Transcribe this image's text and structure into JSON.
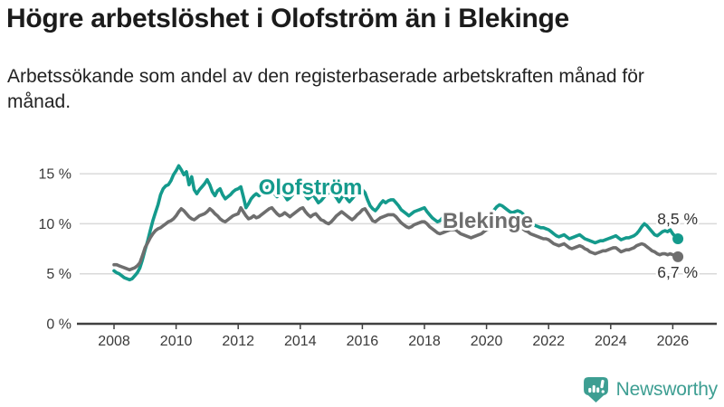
{
  "header": {
    "title": "Högre arbetslöshet i Olofström än i Blekinge",
    "subtitle": "Arbetssökande som andel av den registerbaserade arbetskraften månad för månad."
  },
  "footer": {
    "brand": "Newsworthy",
    "logo_icon": "speech-bubble-bar-chart-exclamation",
    "brand_color": "#3d9e92"
  },
  "colors": {
    "olofstrom_teal": "#149a8c",
    "blekinge_gray": "#6e6e6e",
    "axis_text": "#3a3a3a",
    "gridline": "#d9d9d9",
    "axis_line": "#404040",
    "value_label": "#333333"
  },
  "chart_data": {
    "type": "line",
    "unit": "%",
    "title": "Högre arbetslöshet i Olofström än i Blekinge",
    "x_axis": {
      "tick_years": [
        2008,
        2010,
        2012,
        2014,
        2016,
        2018,
        2020,
        2022,
        2024,
        2026
      ],
      "start": 2008.0,
      "end": 2026.17
    },
    "y_axis": {
      "ticks": [
        {
          "value": 0,
          "label": "0 %"
        },
        {
          "value": 5,
          "label": "5 %"
        },
        {
          "value": 10,
          "label": "10 %"
        },
        {
          "value": 15,
          "label": "15 %"
        }
      ],
      "max": 16,
      "gridlines": true
    },
    "legend": "inline-labels-on-lines",
    "series": [
      {
        "name": "Olofström",
        "color": "#149a8c",
        "start_year": 2008,
        "interval": "monthly",
        "end_label": "8,5 %",
        "end_value": 8.5,
        "values": [
          5.3,
          5.1,
          5.0,
          4.8,
          4.6,
          4.5,
          4.4,
          4.5,
          4.8,
          5.1,
          5.6,
          6.4,
          7.4,
          8.3,
          9.3,
          10.3,
          11.1,
          11.9,
          12.9,
          13.5,
          13.8,
          13.9,
          14.3,
          14.9,
          15.3,
          15.8,
          15.4,
          14.9,
          15.2,
          13.9,
          14.7,
          13.4,
          13.0,
          13.4,
          13.7,
          14.0,
          14.4,
          13.9,
          13.2,
          12.8,
          13.3,
          13.5,
          12.9,
          12.5,
          12.7,
          12.9,
          13.2,
          13.4,
          13.5,
          13.7,
          12.7,
          11.6,
          12.0,
          12.5,
          12.8,
          13.0,
          12.8,
          13.0,
          13.3,
          13.6,
          13.8,
          13.5,
          13.0,
          12.7,
          12.9,
          13.1,
          12.8,
          12.4,
          12.6,
          12.9,
          13.1,
          13.3,
          13.6,
          13.2,
          12.8,
          12.5,
          12.7,
          12.9,
          12.5,
          12.1,
          12.3,
          12.6,
          12.9,
          13.1,
          13.3,
          12.9,
          12.6,
          12.2,
          12.6,
          12.9,
          12.5,
          12.2,
          12.5,
          12.8,
          13.1,
          13.3,
          13.4,
          13.1,
          12.4,
          11.8,
          11.5,
          11.3,
          11.6,
          12.0,
          12.3,
          12.1,
          12.3,
          12.4,
          12.4,
          12.1,
          11.8,
          11.4,
          11.2,
          11.0,
          10.8,
          11.0,
          11.2,
          11.3,
          11.4,
          11.5,
          11.6,
          11.2,
          10.9,
          10.6,
          10.4,
          10.2,
          10.3,
          10.6,
          10.8,
          10.6,
          10.5,
          10.6,
          10.7,
          10.4,
          10.2,
          10.0,
          10.1,
          10.2,
          10.0,
          9.9,
          10.1,
          10.3,
          10.4,
          10.6,
          10.7,
          10.8,
          11.0,
          11.4,
          11.7,
          11.9,
          11.8,
          11.6,
          11.4,
          11.2,
          11.1,
          11.2,
          11.3,
          11.2,
          11.0,
          10.7,
          10.4,
          10.1,
          9.9,
          9.8,
          9.7,
          9.6,
          9.6,
          9.5,
          9.4,
          9.2,
          9.0,
          8.8,
          8.7,
          8.8,
          8.9,
          8.7,
          8.5,
          8.6,
          8.7,
          8.8,
          8.9,
          8.7,
          8.5,
          8.4,
          8.3,
          8.2,
          8.1,
          8.2,
          8.3,
          8.3,
          8.4,
          8.5,
          8.6,
          8.7,
          8.8,
          8.6,
          8.4,
          8.5,
          8.6,
          8.6,
          8.7,
          8.8,
          9.0,
          9.3,
          9.7,
          10.0,
          9.8,
          9.5,
          9.2,
          8.9,
          8.8,
          9.0,
          9.2,
          9.3,
          9.2,
          9.4,
          9.0,
          8.7,
          8.5
        ]
      },
      {
        "name": "Blekinge",
        "color": "#6e6e6e",
        "start_year": 2008,
        "interval": "monthly",
        "end_label": "6,7 %",
        "end_value": 6.7,
        "values": [
          5.9,
          5.9,
          5.8,
          5.7,
          5.6,
          5.5,
          5.4,
          5.5,
          5.6,
          5.8,
          6.1,
          6.8,
          7.6,
          8.1,
          8.6,
          9.0,
          9.3,
          9.5,
          9.6,
          9.8,
          10.0,
          10.2,
          10.3,
          10.5,
          10.8,
          11.2,
          11.5,
          11.3,
          11.0,
          10.7,
          10.5,
          10.4,
          10.6,
          10.8,
          10.9,
          11.0,
          11.2,
          11.5,
          11.3,
          11.0,
          10.8,
          10.5,
          10.3,
          10.2,
          10.4,
          10.6,
          10.8,
          10.9,
          11.0,
          11.6,
          11.2,
          10.8,
          10.5,
          10.6,
          10.8,
          10.6,
          10.7,
          10.9,
          11.1,
          11.3,
          11.5,
          11.6,
          11.3,
          11.0,
          10.8,
          10.9,
          11.1,
          10.9,
          10.7,
          10.9,
          11.1,
          11.3,
          11.5,
          11.6,
          11.2,
          10.9,
          10.7,
          10.9,
          11.0,
          10.7,
          10.4,
          10.3,
          10.1,
          10.0,
          10.2,
          10.5,
          10.8,
          11.0,
          11.2,
          11.0,
          10.8,
          10.6,
          10.4,
          10.6,
          10.9,
          11.1,
          11.4,
          11.5,
          11.1,
          10.7,
          10.3,
          10.2,
          10.4,
          10.6,
          10.7,
          10.8,
          10.9,
          10.9,
          10.9,
          10.7,
          10.4,
          10.1,
          9.9,
          9.7,
          9.6,
          9.7,
          9.9,
          10.0,
          10.1,
          10.2,
          10.2,
          10.0,
          9.7,
          9.5,
          9.3,
          9.1,
          9.0,
          9.1,
          9.2,
          9.3,
          9.4,
          9.4,
          9.4,
          9.2,
          9.0,
          8.9,
          8.8,
          8.7,
          8.6,
          8.7,
          8.8,
          8.9,
          9.0,
          9.2,
          9.4,
          9.5,
          9.7,
          10.0,
          10.2,
          10.3,
          10.2,
          10.0,
          9.9,
          9.8,
          9.7,
          9.7,
          9.7,
          9.6,
          9.5,
          9.3,
          9.2,
          9.0,
          8.9,
          8.8,
          8.7,
          8.6,
          8.5,
          8.5,
          8.4,
          8.2,
          8.0,
          7.9,
          7.8,
          7.9,
          8.0,
          7.8,
          7.6,
          7.5,
          7.6,
          7.7,
          7.8,
          7.7,
          7.5,
          7.4,
          7.2,
          7.1,
          7.0,
          7.1,
          7.2,
          7.3,
          7.3,
          7.4,
          7.5,
          7.6,
          7.6,
          7.4,
          7.2,
          7.3,
          7.4,
          7.4,
          7.5,
          7.6,
          7.8,
          7.9,
          8.0,
          7.9,
          7.7,
          7.5,
          7.3,
          7.2,
          7.0,
          6.9,
          7.0,
          7.0,
          6.9,
          7.0,
          6.9,
          6.8,
          6.7
        ]
      }
    ]
  }
}
